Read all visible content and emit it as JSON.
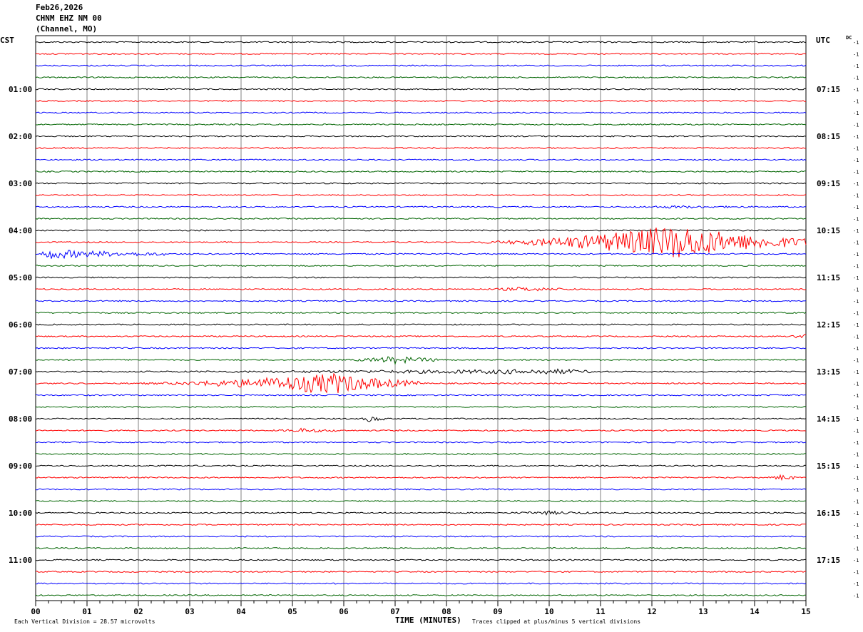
{
  "header": {
    "date": "Feb26,2026",
    "station": "CHNM EHZ NM 00",
    "note": "(Channel, MO)"
  },
  "left_tz": "CST",
  "right_tz": "UTC",
  "dc_label": "DC",
  "footer": {
    "scale": "Each Vertical Division =   28.57 microvolts",
    "xlabel": "TIME (MINUTES)",
    "clip": "Traces clipped at plus/minus 5 vertical divisions"
  },
  "colors": {
    "black": "#000000",
    "red": "#ff0000",
    "blue": "#0000ff",
    "green": "#006400",
    "grid": "#808080"
  },
  "chart_data": {
    "type": "line",
    "title": "",
    "xlabel": "TIME (MINUTES)",
    "ylabel": "",
    "x_ticks": [
      "00",
      "01",
      "02",
      "03",
      "04",
      "05",
      "06",
      "07",
      "08",
      "09",
      "10",
      "11",
      "12",
      "13",
      "14",
      "15"
    ],
    "xlim": [
      0,
      15
    ],
    "n_traces": 48,
    "minutes_per_trace": 15,
    "trace_colors": [
      "black",
      "red",
      "blue",
      "green"
    ],
    "left_labels": [
      "01:00",
      "02:00",
      "03:00",
      "04:00",
      "05:00",
      "06:00",
      "07:00",
      "08:00",
      "09:00",
      "10:00",
      "11:00"
    ],
    "right_labels": [
      "07:15",
      "08:15",
      "09:15",
      "10:15",
      "11:15",
      "12:15",
      "13:15",
      "14:15",
      "15:15",
      "16:15",
      "17:15"
    ],
    "label_trace_index": [
      4,
      8,
      12,
      16,
      20,
      24,
      28,
      32,
      36,
      40,
      44
    ],
    "right_scale_value": "-1",
    "events": [
      {
        "trace": 17,
        "start_min": 8.0,
        "peak_min": 12.5,
        "end_min": 15,
        "amplitude": 3.0
      },
      {
        "trace": 18,
        "start_min": 0.0,
        "peak_min": 0.2,
        "end_min": 2.5,
        "amplitude": 0.8
      },
      {
        "trace": 29,
        "start_min": 1.5,
        "peak_min": 5.8,
        "end_min": 7.5,
        "amplitude": 1.8
      },
      {
        "trace": 27,
        "start_min": 5.8,
        "peak_min": 7.0,
        "end_min": 8.0,
        "amplitude": 0.6
      },
      {
        "trace": 28,
        "start_min": 0.0,
        "peak_min": 10.3,
        "end_min": 11.0,
        "amplitude": 0.35
      },
      {
        "trace": 25,
        "start_min": 14.6,
        "peak_min": 14.9,
        "end_min": 15,
        "amplitude": 0.5
      },
      {
        "trace": 37,
        "start_min": 14.2,
        "peak_min": 14.5,
        "end_min": 14.8,
        "amplitude": 0.4
      },
      {
        "trace": 21,
        "start_min": 8.5,
        "peak_min": 9.5,
        "end_min": 10.6,
        "amplitude": 0.3
      },
      {
        "trace": 33,
        "start_min": 4.5,
        "peak_min": 5.2,
        "end_min": 6.0,
        "amplitude": 0.3
      },
      {
        "trace": 40,
        "start_min": 9.0,
        "peak_min": 10.0,
        "end_min": 10.8,
        "amplitude": 0.25
      },
      {
        "trace": 32,
        "start_min": 6.3,
        "peak_min": 6.5,
        "end_min": 6.8,
        "amplitude": 0.5
      },
      {
        "trace": 14,
        "start_min": 11.0,
        "peak_min": 12.5,
        "end_min": 14.0,
        "amplitude": 0.15
      }
    ]
  }
}
